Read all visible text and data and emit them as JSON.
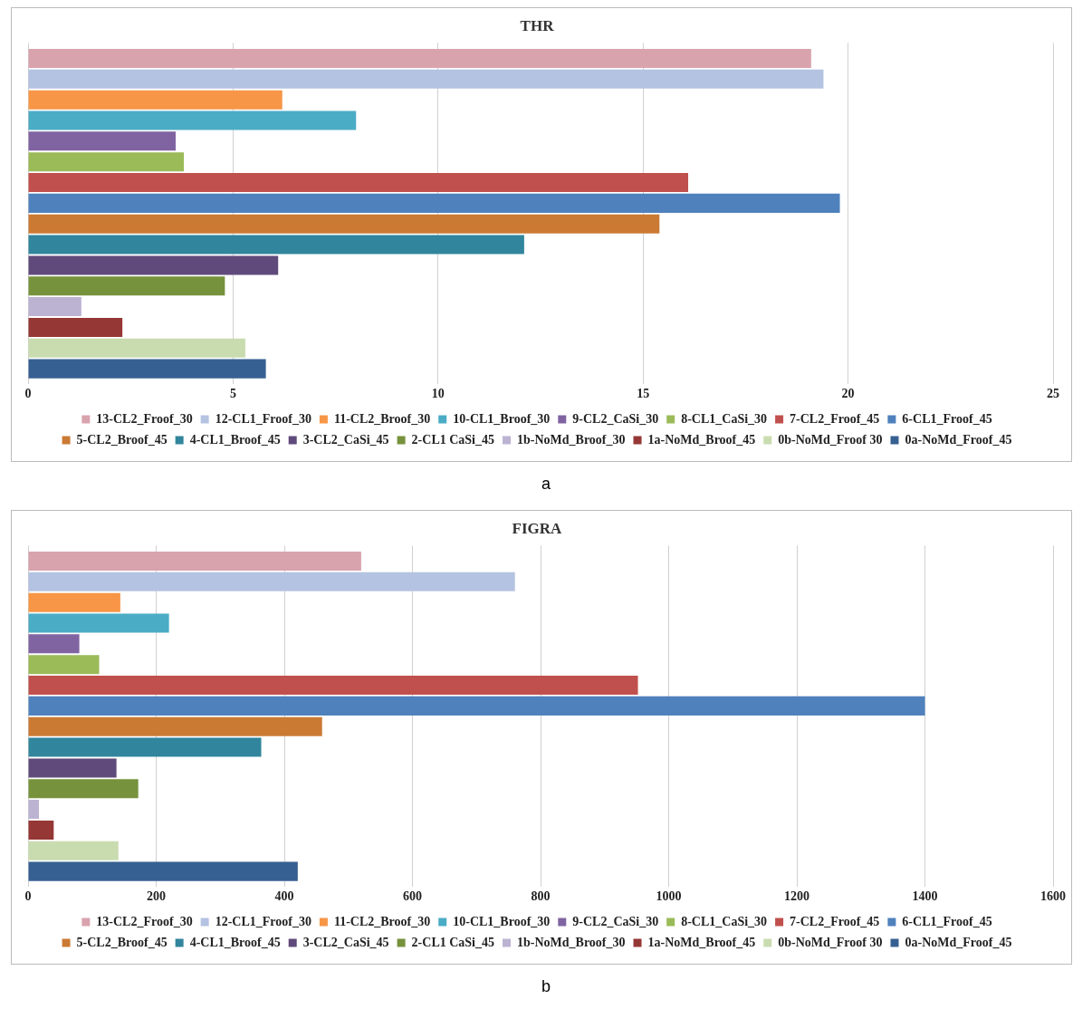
{
  "chart_data": [
    {
      "type": "bar",
      "orientation": "horizontal",
      "title": "THR",
      "categories": [
        null
      ],
      "xlim": [
        0,
        25
      ],
      "xticks": [
        0,
        5,
        10,
        15,
        20,
        25
      ],
      "grid": "x",
      "legend": "bottom",
      "annotations": [
        "a"
      ],
      "series": [
        {
          "name": "13-CL2_Froof_30",
          "color": "#d9a3ae",
          "values": [
            19.1
          ]
        },
        {
          "name": "12-CL1_Froof_30",
          "color": "#b4c3e1",
          "values": [
            19.4
          ]
        },
        {
          "name": "11-CL2_Broof_30",
          "color": "#f79646",
          "values": [
            6.2
          ]
        },
        {
          "name": "10-CL1_Broof_30",
          "color": "#4bacc6",
          "values": [
            8.0
          ]
        },
        {
          "name": "9-CL2_CaSi_30",
          "color": "#8064a2",
          "values": [
            3.6
          ]
        },
        {
          "name": "8-CL1_CaSi_30",
          "color": "#9bbb59",
          "values": [
            3.8
          ]
        },
        {
          "name": "7-CL2_Froof_45",
          "color": "#c0504d",
          "values": [
            16.1
          ]
        },
        {
          "name": "6-CL1_Froof_45",
          "color": "#4f81bd",
          "values": [
            19.8
          ]
        },
        {
          "name": "5-CL2_Broof_45",
          "color": "#cb7a34",
          "values": [
            15.4
          ]
        },
        {
          "name": "4-CL1_Broof_45",
          "color": "#31859c",
          "values": [
            12.1
          ]
        },
        {
          "name": "3-CL2_CaSi_45",
          "color": "#604a7b",
          "values": [
            6.1
          ]
        },
        {
          "name": "2-CL1 CaSi_45",
          "color": "#76923c",
          "values": [
            4.8
          ]
        },
        {
          "name": "1b-NoMd_Broof_30",
          "color": "#bcb3d3",
          "values": [
            1.3
          ]
        },
        {
          "name": "1a-NoMd_Broof_45",
          "color": "#953735",
          "values": [
            2.3
          ]
        },
        {
          "name": "0b-NoMd_Froof 30",
          "color": "#c9dcb0",
          "values": [
            5.3
          ]
        },
        {
          "name": "0a-NoMd_Froof_45",
          "color": "#376092",
          "values": [
            5.8
          ]
        }
      ]
    },
    {
      "type": "bar",
      "orientation": "horizontal",
      "title": "FIGRA",
      "categories": [
        null
      ],
      "xlim": [
        0,
        1600
      ],
      "xticks": [
        0,
        200,
        400,
        600,
        800,
        1000,
        1200,
        1400,
        1600
      ],
      "grid": "x",
      "legend": "bottom",
      "annotations": [
        "b"
      ],
      "series": [
        {
          "name": "13-CL2_Froof_30",
          "color": "#d9a3ae",
          "values": [
            520
          ]
        },
        {
          "name": "12-CL1_Froof_30",
          "color": "#b4c3e1",
          "values": [
            760
          ]
        },
        {
          "name": "11-CL2_Broof_30",
          "color": "#f79646",
          "values": [
            144
          ]
        },
        {
          "name": "10-CL1_Broof_30",
          "color": "#4bacc6",
          "values": [
            220
          ]
        },
        {
          "name": "9-CL2_CaSi_30",
          "color": "#8064a2",
          "values": [
            80
          ]
        },
        {
          "name": "8-CL1_CaSi_30",
          "color": "#9bbb59",
          "values": [
            111
          ]
        },
        {
          "name": "7-CL2_Froof_45",
          "color": "#c0504d",
          "values": [
            952
          ]
        },
        {
          "name": "6-CL1_Froof_45",
          "color": "#4f81bd",
          "values": [
            1400
          ]
        },
        {
          "name": "5-CL2_Broof_45",
          "color": "#cb7a34",
          "values": [
            459
          ]
        },
        {
          "name": "4-CL1_Broof_45",
          "color": "#31859c",
          "values": [
            364
          ]
        },
        {
          "name": "3-CL2_CaSi_45",
          "color": "#604a7b",
          "values": [
            138
          ]
        },
        {
          "name": "2-CL1 CaSi_45",
          "color": "#76923c",
          "values": [
            172
          ]
        },
        {
          "name": "1b-NoMd_Broof_30",
          "color": "#bcb3d3",
          "values": [
            17
          ]
        },
        {
          "name": "1a-NoMd_Broof_45",
          "color": "#953735",
          "values": [
            40
          ]
        },
        {
          "name": "0b-NoMd_Froof 30",
          "color": "#c9dcb0",
          "values": [
            141
          ]
        },
        {
          "name": "0a-NoMd_Froof_45",
          "color": "#376092",
          "values": [
            421
          ]
        }
      ]
    }
  ]
}
